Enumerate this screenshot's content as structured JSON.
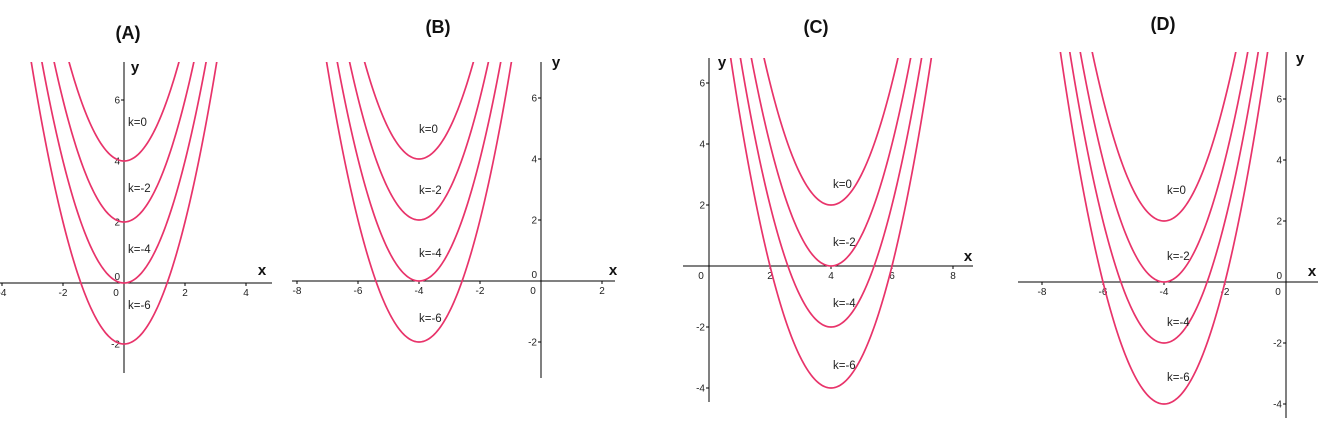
{
  "curve_color": "#e8336a",
  "chart_data": [
    {
      "type": "line",
      "title": "(A)",
      "xlabel": "x",
      "ylabel": "y",
      "x_ticks": [
        "-4",
        "-2",
        "0",
        "2",
        "4"
      ],
      "y_ticks": [
        "-2",
        "0",
        "2",
        "4",
        "6"
      ],
      "xlim": [
        -4,
        4.5
      ],
      "ylim": [
        -3,
        7.2
      ],
      "origin_tick": "0",
      "series": [
        {
          "label": "k=0",
          "x": [
            -3,
            -2,
            -1,
            0,
            1,
            2,
            3
          ],
          "y": [
            13,
            8,
            5,
            4,
            5,
            8,
            13
          ]
        },
        {
          "label": "k=-2",
          "x": [
            -3,
            -2,
            -1,
            0,
            1,
            2,
            3
          ],
          "y": [
            11,
            6,
            3,
            2,
            3,
            6,
            11
          ]
        },
        {
          "label": "k=-4",
          "x": [
            -3,
            -2,
            -1,
            0,
            1,
            2,
            3
          ],
          "y": [
            9,
            4,
            1,
            0,
            1,
            4,
            9
          ]
        },
        {
          "label": "k=-6",
          "x": [
            -3,
            -2,
            -1,
            0,
            1,
            2,
            3
          ],
          "y": [
            7,
            2,
            -1,
            -2,
            -1,
            2,
            7
          ]
        }
      ]
    },
    {
      "type": "line",
      "title": "(B)",
      "xlabel": "x",
      "ylabel": "y",
      "x_ticks": [
        "-8",
        "-6",
        "-4",
        "-2",
        "0",
        "2"
      ],
      "y_ticks": [
        "-2",
        "0",
        "2",
        "4",
        "6"
      ],
      "xlim": [
        -8,
        2.4
      ],
      "ylim": [
        -3.2,
        7.2
      ],
      "origin_tick": "0",
      "series": [
        {
          "label": "k=0",
          "x": [
            -7,
            -6,
            -5,
            -4,
            -3,
            -2,
            -1
          ],
          "y": [
            13,
            8,
            5,
            4,
            5,
            8,
            13
          ]
        },
        {
          "label": "k=-2",
          "x": [
            -7,
            -6,
            -5,
            -4,
            -3,
            -2,
            -1
          ],
          "y": [
            11,
            6,
            3,
            2,
            3,
            6,
            11
          ]
        },
        {
          "label": "k=-4",
          "x": [
            -7,
            -6,
            -5,
            -4,
            -3,
            -2,
            -1
          ],
          "y": [
            9,
            4,
            1,
            0,
            1,
            4,
            9
          ]
        },
        {
          "label": "k=-6",
          "x": [
            -7,
            -6,
            -5,
            -4,
            -3,
            -2,
            -1
          ],
          "y": [
            7,
            2,
            -1,
            -2,
            -1,
            2,
            7
          ]
        }
      ]
    },
    {
      "type": "line",
      "title": "(C)",
      "xlabel": "x",
      "ylabel": "y",
      "x_ticks": [
        "0",
        "2",
        "4",
        "6",
        "8"
      ],
      "y_ticks": [
        "-4",
        "-2",
        "2",
        "4",
        "6"
      ],
      "xlim": [
        0,
        8.5
      ],
      "ylim": [
        -4.5,
        6.8
      ],
      "origin_tick": "0",
      "series": [
        {
          "label": "k=0",
          "x": [
            1,
            2,
            3,
            4,
            5,
            6,
            7
          ],
          "y": [
            11,
            6,
            3,
            2,
            3,
            6,
            11
          ]
        },
        {
          "label": "k=-2",
          "x": [
            1,
            2,
            3,
            4,
            5,
            6,
            7
          ],
          "y": [
            9,
            4,
            1,
            0,
            1,
            4,
            9
          ]
        },
        {
          "label": "k=-4",
          "x": [
            1,
            2,
            3,
            4,
            5,
            6,
            7
          ],
          "y": [
            7,
            2,
            -1,
            -2,
            -1,
            2,
            7
          ]
        },
        {
          "label": "k=-6",
          "x": [
            1,
            2,
            3,
            4,
            5,
            6,
            7
          ],
          "y": [
            5,
            0,
            -3,
            -4,
            -3,
            0,
            5
          ]
        }
      ]
    },
    {
      "type": "line",
      "title": "(D)",
      "xlabel": "x",
      "ylabel": "y",
      "x_ticks": [
        "-8",
        "-6",
        "-4",
        "-2",
        "0"
      ],
      "y_ticks": [
        "-4",
        "-2",
        "0",
        "2",
        "4",
        "6"
      ],
      "xlim": [
        -8,
        0.4
      ],
      "ylim": [
        -4.5,
        7.3
      ],
      "origin_tick": "0",
      "series": [
        {
          "label": "k=0",
          "x": [
            -7,
            -6,
            -5,
            -4,
            -3,
            -2,
            -1
          ],
          "y": [
            11,
            6,
            3,
            2,
            3,
            6,
            11
          ]
        },
        {
          "label": "k=-2",
          "x": [
            -7,
            -6,
            -5,
            -4,
            -3,
            -2,
            -1
          ],
          "y": [
            9,
            4,
            1,
            0,
            1,
            4,
            9
          ]
        },
        {
          "label": "k=-4",
          "x": [
            -7,
            -6,
            -5,
            -4,
            -3,
            -2,
            -1
          ],
          "y": [
            7,
            2,
            -1,
            -2,
            -1,
            2,
            7
          ]
        },
        {
          "label": "k=-6",
          "x": [
            -7,
            -6,
            -5,
            -4,
            -3,
            -2,
            -1
          ],
          "y": [
            5,
            0,
            -3,
            -4,
            -3,
            0,
            5
          ]
        }
      ]
    }
  ]
}
